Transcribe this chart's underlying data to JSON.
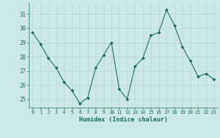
{
  "x": [
    0,
    1,
    2,
    3,
    4,
    5,
    6,
    7,
    8,
    9,
    10,
    11,
    12,
    13,
    14,
    15,
    16,
    17,
    18,
    19,
    20,
    21,
    22,
    23
  ],
  "y": [
    29.7,
    28.9,
    27.9,
    27.2,
    26.2,
    25.6,
    24.7,
    25.1,
    27.2,
    28.1,
    29.0,
    25.7,
    25.0,
    27.3,
    27.9,
    29.5,
    29.7,
    31.3,
    30.2,
    28.7,
    27.7,
    26.6,
    26.8,
    26.4
  ],
  "line_color": "#1a6b5e",
  "marker": "D",
  "marker_size": 2,
  "bg_color": "#cce8e8",
  "grid_color": "#b8d4d4",
  "xlabel": "Humidex (Indice chaleur)",
  "ylabel_ticks": [
    25,
    26,
    27,
    28,
    29,
    30,
    31
  ],
  "xtick_labels": [
    "0",
    "1",
    "2",
    "3",
    "4",
    "5",
    "6",
    "7",
    "8",
    "9",
    "10",
    "11",
    "12",
    "13",
    "14",
    "15",
    "16",
    "17",
    "18",
    "19",
    "20",
    "21",
    "22",
    "23"
  ],
  "ylim": [
    24.4,
    31.8
  ],
  "xlim": [
    -0.5,
    23.5
  ]
}
